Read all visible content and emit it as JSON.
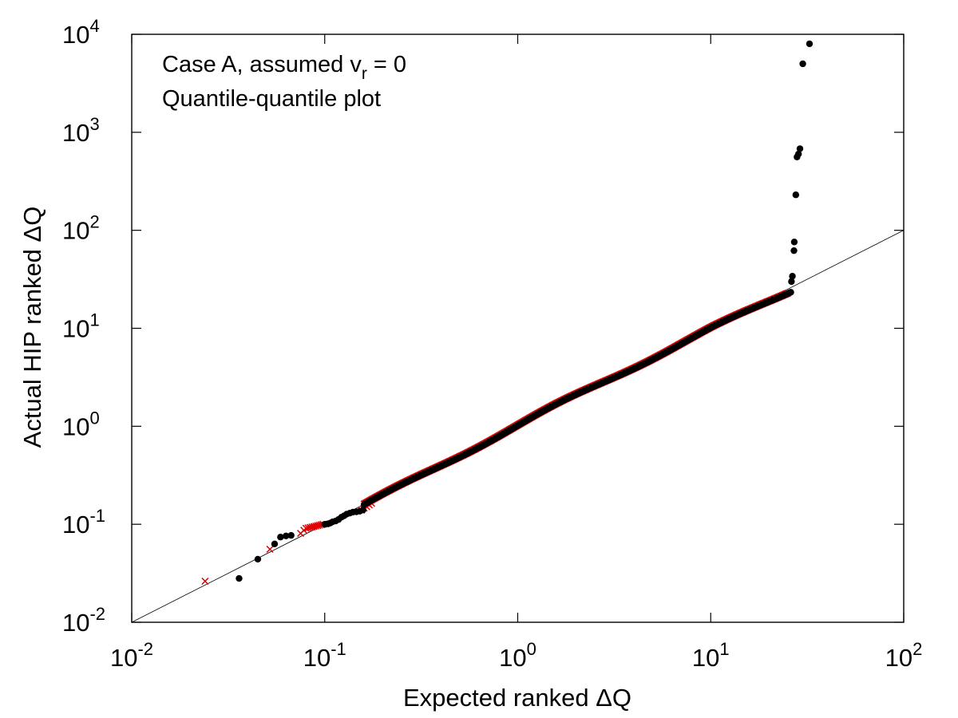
{
  "chart_data": {
    "type": "scatter",
    "title": "",
    "annotations": {
      "line1_prefix": "Case A, assumed v",
      "line1_sub": "r",
      "line1_suffix": " = 0",
      "line2": "Quantile-quantile plot"
    },
    "xlabel": "Expected ranked ΔQ",
    "ylabel": "Actual HIP ranked ΔQ",
    "xscale": "log",
    "yscale": "log",
    "xlim": [
      0.01,
      100
    ],
    "ylim": [
      0.01,
      10000
    ],
    "x_ticks": [
      {
        "base": "10",
        "exp": "-2",
        "value": 0.01
      },
      {
        "base": "10",
        "exp": "-1",
        "value": 0.1
      },
      {
        "base": "10",
        "exp": "0",
        "value": 1
      },
      {
        "base": "10",
        "exp": "1",
        "value": 10
      },
      {
        "base": "10",
        "exp": "2",
        "value": 100
      }
    ],
    "y_ticks": [
      {
        "base": "10",
        "exp": "-2",
        "value": 0.01
      },
      {
        "base": "10",
        "exp": "-1",
        "value": 0.1
      },
      {
        "base": "10",
        "exp": "0",
        "value": 1
      },
      {
        "base": "10",
        "exp": "1",
        "value": 10
      },
      {
        "base": "10",
        "exp": "2",
        "value": 100
      },
      {
        "base": "10",
        "exp": "3",
        "value": 1000
      },
      {
        "base": "10",
        "exp": "4",
        "value": 10000
      }
    ],
    "grid": false,
    "reference_line": {
      "name": "y = x",
      "from": [
        0.01,
        0.01
      ],
      "to": [
        100,
        100
      ],
      "color": "#000000"
    },
    "series": [
      {
        "name": "black points",
        "color": "#000000",
        "marker": "circle",
        "points": [
          [
            0.036,
            0.028
          ],
          [
            0.045,
            0.044
          ],
          [
            0.055,
            0.063
          ],
          [
            0.059,
            0.074
          ],
          [
            0.063,
            0.076
          ],
          [
            0.067,
            0.077
          ],
          [
            0.1,
            0.1
          ],
          [
            0.104,
            0.101
          ],
          [
            0.107,
            0.103
          ],
          [
            0.11,
            0.106
          ],
          [
            0.114,
            0.108
          ],
          [
            0.118,
            0.112
          ],
          [
            0.122,
            0.118
          ],
          [
            0.126,
            0.122
          ],
          [
            0.13,
            0.127
          ],
          [
            0.135,
            0.13
          ],
          [
            0.14,
            0.133
          ],
          [
            0.146,
            0.134
          ],
          [
            0.152,
            0.136
          ],
          [
            0.158,
            0.14
          ],
          [
            26.2,
            30.0
          ],
          [
            26.5,
            34.0
          ],
          [
            27.0,
            62.0
          ],
          [
            27.1,
            76.0
          ],
          [
            27.6,
            230.0
          ],
          [
            28.0,
            560.0
          ],
          [
            28.5,
            600.0
          ],
          [
            29.0,
            680.0
          ],
          [
            30.0,
            5000.0
          ],
          [
            32.5,
            8000.0
          ]
        ],
        "curve_range": [
          0.16,
          26.0
        ]
      },
      {
        "name": "red crosses",
        "color": "#e00000",
        "marker": "cross",
        "points": [
          [
            0.024,
            0.026
          ],
          [
            0.052,
            0.055
          ],
          [
            0.075,
            0.08
          ],
          [
            0.078,
            0.086
          ],
          [
            0.08,
            0.09
          ],
          [
            0.082,
            0.091
          ],
          [
            0.084,
            0.092
          ],
          [
            0.086,
            0.093
          ],
          [
            0.088,
            0.094
          ],
          [
            0.09,
            0.095
          ],
          [
            0.092,
            0.096
          ],
          [
            0.094,
            0.097
          ],
          [
            0.096,
            0.098
          ],
          [
            0.098,
            0.099
          ],
          [
            0.155,
            0.138
          ],
          [
            0.16,
            0.145
          ],
          [
            0.165,
            0.15
          ],
          [
            0.17,
            0.156
          ],
          [
            0.175,
            0.162
          ]
        ],
        "curve_range": [
          0.16,
          25.0
        ]
      }
    ]
  }
}
